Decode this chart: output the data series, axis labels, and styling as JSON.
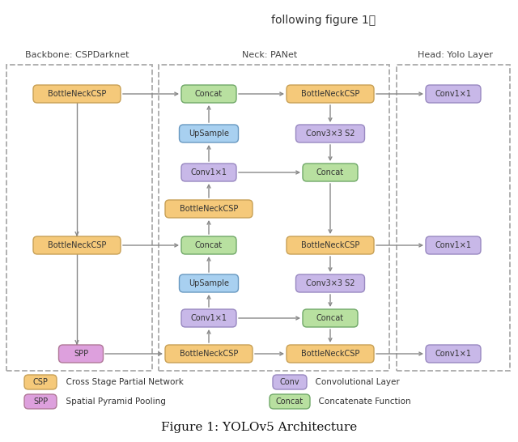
{
  "title": "Figure 1: YOLOv5 Architecture",
  "header_text": "following figure 1：",
  "section_labels": {
    "backbone": "Backbone: CSPDarknet",
    "neck": "Neck: PANet",
    "head": "Head: Yolo Layer"
  },
  "colors": {
    "csp_fill": "#F5C97A",
    "csp_edge": "#C8A055",
    "spp_fill": "#DDA0DD",
    "spp_edge": "#B07898",
    "conv_fill": "#C8B8E8",
    "conv_edge": "#9888C0",
    "concat_fill": "#B8E0A0",
    "concat_edge": "#70A868",
    "upsample_fill": "#A8D0F0",
    "upsample_edge": "#6898C0",
    "background": "#ffffff",
    "arrow": "#888888",
    "dash_edge": "#aaaaaa"
  }
}
